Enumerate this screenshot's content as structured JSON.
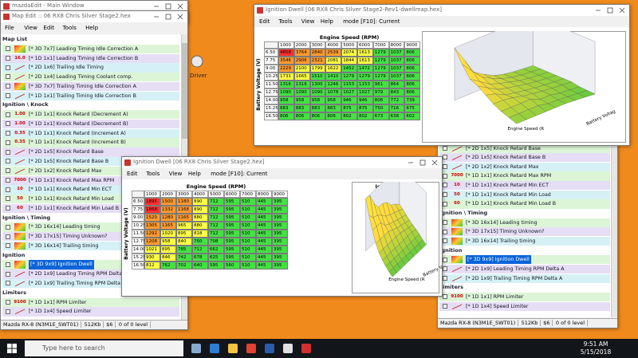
{
  "main_window": {
    "title": "mazdaEdit - Main Window"
  },
  "desktop": {
    "icon_label": "Driver"
  },
  "map_edit": {
    "title": "Map Edit :: 06 RX8 Chris Silver Stage2.hex",
    "menu": [
      "File",
      "View",
      "Edit",
      "Tools",
      "Help"
    ],
    "entries": [
      {
        "section": "Map List"
      },
      {
        "label": "[* 3D 7x7] Leading Timing Idle Correction A"
      },
      {
        "prefix": "16.0",
        "label": "[* 1D 1x1] Leading Timing Idle Correction B"
      },
      {
        "label": "[* 2D 1x6] Trailing Idle Timing"
      },
      {
        "label": "[* 2D 1x4] Leading Timing Coolant comp."
      },
      {
        "label": "[* 3D 7x7] Trailing Timing Idle Correction A"
      },
      {
        "label": "[* 1D 1x1] Trailing Timing Idle Correction B"
      },
      {
        "section": "Ignition \\ Knock"
      },
      {
        "prefix": "1.00",
        "label": "[* 1D 1x1] Knock Retard (Decrement A)"
      },
      {
        "prefix": "1.00",
        "label": "[* 1D 1x1] Knock Retard (Decrement B)"
      },
      {
        "prefix": "0.35",
        "label": "[* 1D 1x1] Knock Retard (Increment A)"
      },
      {
        "prefix": "0.35",
        "label": "[* 1D 1x1] Knock Retard (Increment B)"
      },
      {
        "label": "[* 2D 1x5] Knock Retard Base"
      },
      {
        "label": "[* 2D 1x5] Knock Retard Base B"
      },
      {
        "label": "[* 2D 1x2] Knock Retard Max"
      },
      {
        "prefix": "7000",
        "label": "[* 1D 1x1] Knock Retard Max RPM"
      },
      {
        "prefix": "10",
        "label": "[* 1D 1x1] Knock Retard Min ECT"
      },
      {
        "prefix": "50",
        "label": "[* 1D 1x1] Knock Retard Min Load"
      },
      {
        "prefix": "60",
        "label": "[* 1D 1x1] Knock Retard Min Load B"
      },
      {
        "section": "Ignition \\ Timing"
      },
      {
        "label": "[* 3D 16x14] Leading timing"
      },
      {
        "label": "[* 3D 17x15] Timing Unknown?"
      },
      {
        "label": "[* 3D 16x14] Trailing timing"
      },
      {
        "section": "Ignition"
      },
      {
        "label": "[* 3D 9x9] Ignition Dwell",
        "selected": true
      },
      {
        "label": "[* 2D 1x9] Leading Timing RPM Delta A"
      },
      {
        "label": "[* 2D 1x9] Trailing Timing RPM Delta A"
      },
      {
        "section": "Limiters"
      },
      {
        "prefix": "9100",
        "label": "[* 1D 1x1] RPM Limiter"
      },
      {
        "label": "[* 1D 1x4] Speed Limiter"
      }
    ],
    "status": [
      "Mazda RX-8 (N3M1E_SWT01)",
      "512Kb",
      "$6",
      "0 of 0 level"
    ]
  },
  "back_list": {
    "entries": [
      {
        "label": "[* 2D 1x5] Knock Retard Base"
      },
      {
        "label": "[* 2D 1x5] Knock Retard Base B"
      },
      {
        "label": "[* 2D 1x2] Knock Retard Max"
      },
      {
        "prefix": "7000",
        "label": "[* 1D 1x1] Knock Retard Max RPM"
      },
      {
        "prefix": "10",
        "label": "[* 1D 1x1] Knock Retard Min ECT"
      },
      {
        "prefix": "50",
        "label": "[* 1D 1x1] Knock Retard Min Load"
      },
      {
        "prefix": "60",
        "label": "[* 1D 1x1] Knock Retard Min Load B"
      },
      {
        "section": "Ignition \\ Timing"
      },
      {
        "label": "[* 3D 16x14] Leading timing"
      },
      {
        "label": "[* 3D 17x15] Timing Unknown?"
      },
      {
        "label": "[* 3D 16x14] Trailing timing"
      },
      {
        "section": "Ignition"
      },
      {
        "label": "[* 3D 9x9] Ignition Dwell",
        "selected": true
      },
      {
        "label": "[* 2D 1x9] Leading Timing RPM Delta A"
      },
      {
        "label": "[* 2D 1x9] Trailing Timing RPM Delta A"
      },
      {
        "section": "Limiters"
      },
      {
        "prefix": "9100",
        "label": "[* 1D 1x1] RPM Limiter"
      },
      {
        "label": "[* 1D 1x4] Speed Limiter"
      }
    ],
    "status": [
      "Mazda RX-8 (N3M1E_SWT01)",
      "512Kb",
      "$6",
      "0 of 0 level"
    ]
  },
  "dwell_windows": [
    {
      "title": "Ignition Dwell [06 RX8 Chris Silver Stage2-Rev1-dwellmap.hex]",
      "menu": [
        "Edit",
        "Tools",
        "View",
        "Help"
      ],
      "mode": "mode [F10]: Current",
      "x_label": "Engine Speed (RPM)",
      "y_label": "Battery Voltage (V)",
      "columns": [
        1000,
        2000,
        3000,
        4000,
        5000,
        6000,
        7000,
        8000,
        9000
      ],
      "rows": [
        "6.50",
        "7.75",
        "9.00",
        "10.25",
        "11.50",
        "12.75",
        "14.00",
        "15.25",
        "16.50"
      ],
      "cells": [
        [
          4858,
          3764,
          2840,
          2539,
          2074,
          1613,
          1279,
          1037,
          806
        ],
        [
          3546,
          2906,
          2321,
          2081,
          1844,
          1613,
          1279,
          1037,
          806
        ],
        [
          2229,
          2100,
          1799,
          1622,
          1452,
          1472,
          1279,
          1037,
          806
        ],
        [
          1731,
          1665,
          1510,
          1410,
          1279,
          1279,
          1279,
          1037,
          806
        ],
        [
          1316,
          1316,
          1300,
          1246,
          1153,
          1153,
          961,
          864,
          806
        ],
        [
          1090,
          1090,
          1090,
          1078,
          1027,
          1027,
          979,
          843,
          806
        ],
        [
          958,
          958,
          958,
          958,
          946,
          946,
          806,
          772,
          739
        ],
        [
          883,
          883,
          883,
          883,
          875,
          875,
          750,
          716,
          675
        ],
        [
          806,
          806,
          806,
          806,
          802,
          802,
          673,
          638,
          602
        ]
      ],
      "plot_title": "Ignition Dwell",
      "plot_x_label": "Engine Speed (R",
      "plot_y_label": "Battery Voltag"
    },
    {
      "title": "Ignition Dwell [06 RX8 Chris Silver Stage2.hex]",
      "menu": [
        "Edit",
        "Tools",
        "View",
        "Help"
      ],
      "mode": "mode [F10]: Current",
      "x_label": "Engine Speed (RPM)",
      "y_label": "Battery Voltage (V)",
      "columns": [
        1000,
        2000,
        3000,
        4000,
        5000,
        6000,
        7000,
        8000,
        9000
      ],
      "rows": [
        "6.50",
        "7.75",
        "9.00",
        "10.25",
        "11.50",
        "12.75",
        "14.00",
        "15.25",
        "16.50"
      ],
      "cells": [
        [
          1895,
          1500,
          1180,
          890,
          712,
          595,
          510,
          445,
          395
        ],
        [
          1868,
          1332,
          1168,
          890,
          712,
          595,
          510,
          445,
          395
        ],
        [
          1520,
          1280,
          1165,
          880,
          712,
          595,
          510,
          445,
          395
        ],
        [
          1305,
          1165,
          965,
          880,
          712,
          595,
          510,
          445,
          395
        ],
        [
          1292,
          1020,
          895,
          818,
          712,
          595,
          510,
          445,
          395
        ],
        [
          1208,
          958,
          840,
          760,
          708,
          595,
          510,
          445,
          395
        ],
        [
          1021,
          895,
          785,
          712,
          662,
          595,
          510,
          445,
          395
        ],
        [
          930,
          846,
          742,
          678,
          625,
          595,
          510,
          445,
          395
        ],
        [
          812,
          762,
          702,
          640,
          595,
          560,
          510,
          445,
          395
        ]
      ],
      "plot_title": "Ignition Dwell",
      "plot_x_label": "Engine Speed (R",
      "plot_y_label": "Battery Voltage"
    }
  ],
  "taskbar": {
    "search": "Type here to search",
    "time": "9:51 AM",
    "date": "5/15/2018"
  }
}
